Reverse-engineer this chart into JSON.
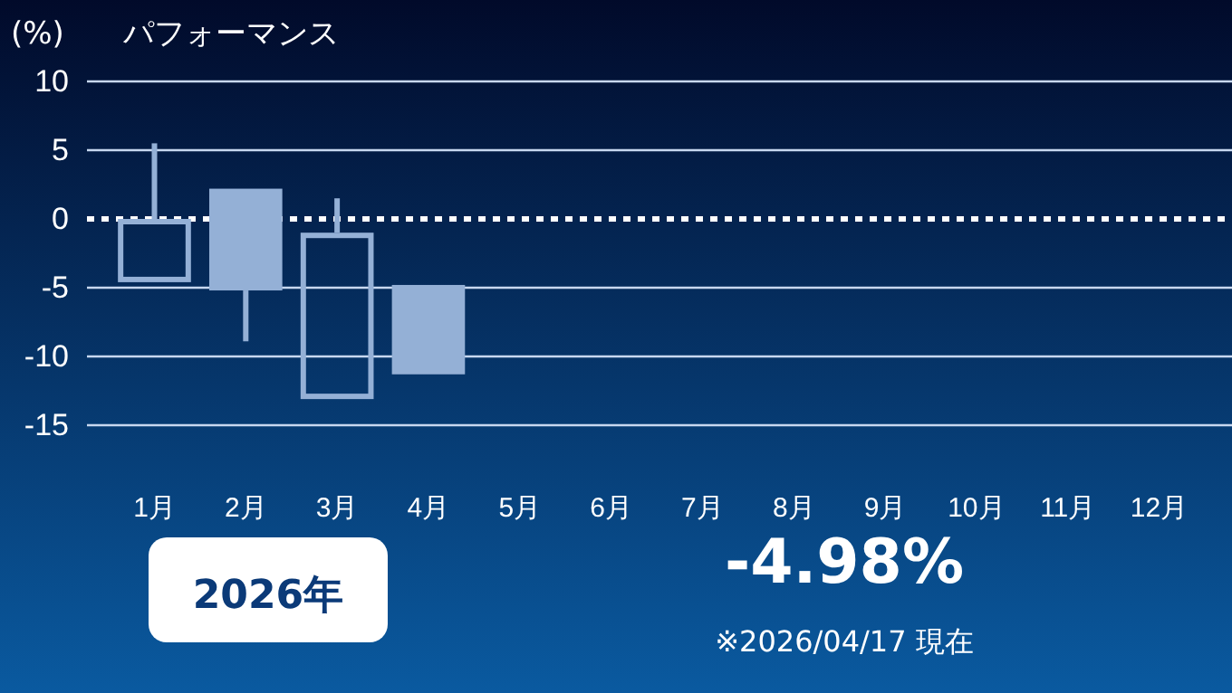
{
  "chart_data": {
    "type": "candlestick",
    "title": "パフォーマンス",
    "ylabel": "(%)",
    "categories": [
      "1月",
      "2月",
      "3月",
      "4月",
      "5月",
      "6月",
      "7月",
      "8月",
      "9月",
      "10月",
      "11月",
      "12月"
    ],
    "ohlc": [
      [
        -4.6,
        5.5,
        -4.6,
        0
      ],
      [
        2.2,
        2.2,
        -8.9,
        -5.2
      ],
      [
        -13.1,
        1.5,
        -13.1,
        -1
      ],
      [
        -4.8,
        -4.8,
        -11.3,
        -11.3
      ],
      null,
      null,
      null,
      null,
      null,
      null,
      null,
      null
    ],
    "color": "#94b0d6",
    "ylim": [
      -15,
      10
    ],
    "yticks": [
      -15,
      -10,
      -5,
      0,
      5,
      10
    ],
    "grid": "y",
    "ref_lines": [
      {
        "axis": "y",
        "value": 0,
        "color": "#ffffff",
        "line_style": "dotted"
      }
    ],
    "annotations": [
      "2026年",
      "-4.98%",
      "※2026/04/17 現在"
    ]
  }
}
